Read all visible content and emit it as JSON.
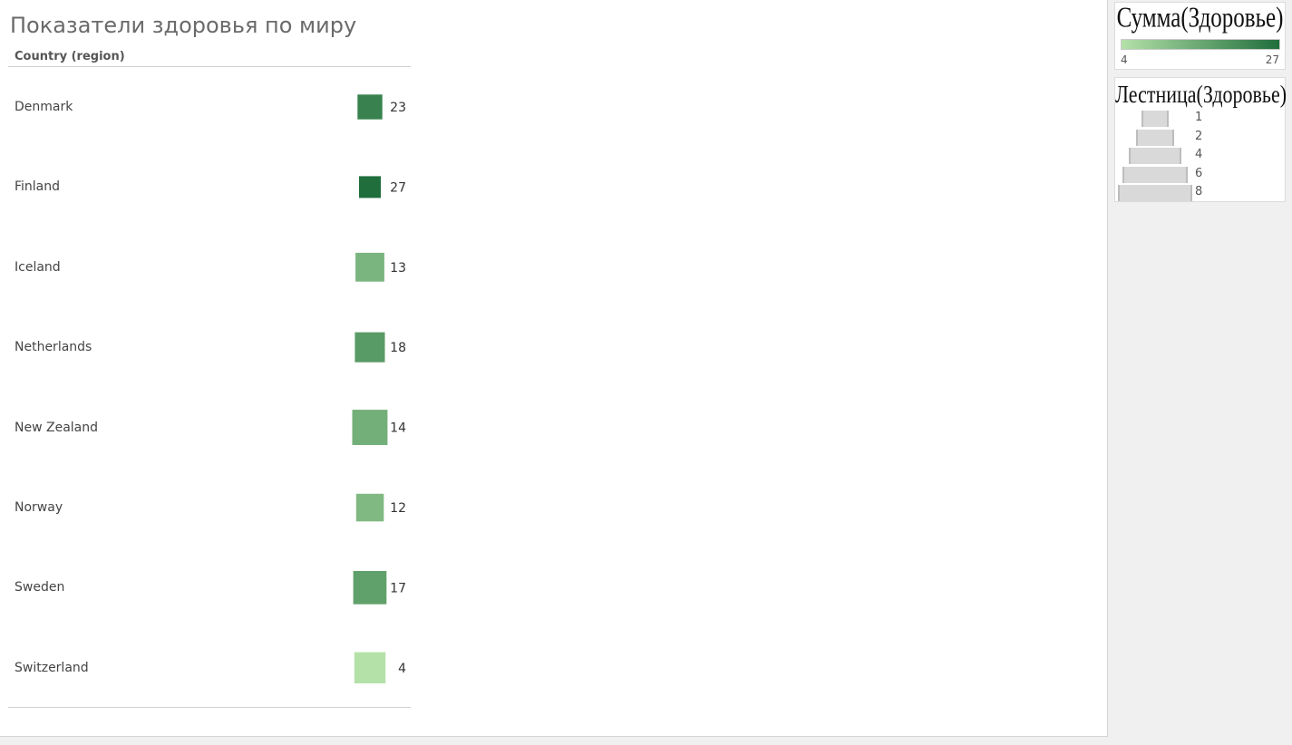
{
  "title": "Показатели здоровья по миру",
  "column_header": "Country (region)",
  "legend_color": {
    "title": "Сумма(Здоровье)",
    "min_label": "4",
    "max_label": "27",
    "colors": [
      "#b4e1a8",
      "#1f6e3c"
    ]
  },
  "legend_size": {
    "title": "Лестница(Здоровье)",
    "items": [
      "1",
      "2",
      "4",
      "6",
      "8"
    ]
  },
  "chart_data": {
    "type": "table",
    "mark": "square",
    "categories": [
      "Denmark",
      "Finland",
      "Iceland",
      "Netherlands",
      "New Zealand",
      "Norway",
      "Sweden",
      "Switzerland"
    ],
    "values": [
      23,
      27,
      13,
      18,
      14,
      12,
      17,
      4
    ],
    "size_values": [
      3.5,
      2.5,
      5,
      5.5,
      8,
      4.5,
      7,
      6
    ],
    "color_range": [
      4,
      27
    ],
    "title": "Показатели здоровья по миру",
    "xlabel": "",
    "ylabel": "Country (region)"
  }
}
